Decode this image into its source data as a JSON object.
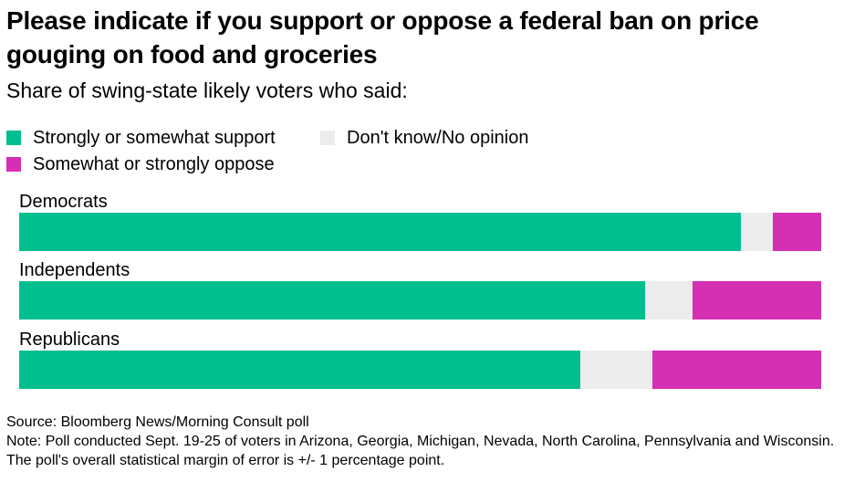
{
  "title": "Please indicate if you support or oppose a federal ban on price gouging on food and groceries",
  "subtitle": "Share of swing-state likely voters who said:",
  "legend": [
    {
      "label": "Strongly or somewhat support",
      "color": "#00bf8f"
    },
    {
      "label": "Don't know/No opinion",
      "color": "#ececec"
    },
    {
      "label": "Somewhat or strongly oppose",
      "color": "#d52fb3"
    }
  ],
  "chart_data": {
    "type": "bar",
    "orientation": "horizontal",
    "stacked": true,
    "title": "Please indicate if you support or oppose a federal ban on price gouging on food and groceries",
    "subtitle": "Share of swing-state likely voters who said:",
    "categories": [
      "Democrats",
      "Independents",
      "Republicans"
    ],
    "series": [
      {
        "name": "Strongly or somewhat support",
        "color": "#00bf8f",
        "values": [
          90,
          78,
          70
        ]
      },
      {
        "name": "Don't know/No opinion",
        "color": "#ececec",
        "values": [
          4,
          6,
          9
        ]
      },
      {
        "name": "Somewhat or strongly oppose",
        "color": "#d52fb3",
        "values": [
          6,
          16,
          21
        ]
      }
    ],
    "xlim": [
      0,
      100
    ],
    "xlabel": "",
    "ylabel": "",
    "grid": false,
    "legend_position": "top-left"
  },
  "footer": {
    "source": "Source: Bloomberg News/Morning Consult poll",
    "note": "Note: Poll conducted Sept. 19-25 of voters in Arizona, Georgia, Michigan, Nevada, North Carolina, Pennsylvania and Wisconsin. The poll's overall statistical margin of error is +/- 1 percentage point."
  }
}
